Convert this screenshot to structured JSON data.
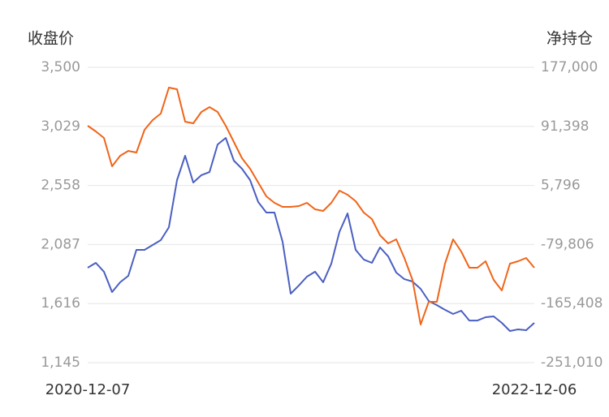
{
  "chart_data": {
    "type": "line",
    "ylabel": "收盘价",
    "y2label": "净持仓",
    "categories": [
      "2020-12-07",
      null,
      null,
      null,
      null,
      null,
      null,
      null,
      null,
      null,
      null,
      null,
      null,
      null,
      null,
      null,
      null,
      null,
      null,
      null,
      null,
      null,
      null,
      null,
      null,
      null,
      null,
      null,
      null,
      null,
      null,
      null,
      null,
      null,
      null,
      null,
      null,
      null,
      null,
      null,
      null,
      null,
      null,
      null,
      null,
      null,
      null,
      null,
      null,
      null,
      null,
      null,
      null,
      null,
      null,
      "2022-12-06"
    ],
    "ylim": [
      1145,
      3500
    ],
    "yticks": [
      {
        "value": 1145,
        "label": "1,145"
      },
      {
        "value": 1616,
        "label": "1,616"
      },
      {
        "value": 2087,
        "label": "2,087"
      },
      {
        "value": 2558,
        "label": "2,558"
      },
      {
        "value": 3029,
        "label": "3,029"
      },
      {
        "value": 3500,
        "label": "3,500"
      }
    ],
    "y2lim": [
      -251010,
      177000
    ],
    "y2ticks": [
      {
        "value": -251010,
        "label": "-251,010"
      },
      {
        "value": -165408,
        "label": "-165,408"
      },
      {
        "value": -79806,
        "label": "-79,806"
      },
      {
        "value": 5796,
        "label": "5,796"
      },
      {
        "value": 91398,
        "label": "91,398"
      },
      {
        "value": 177000,
        "label": "177,000"
      }
    ],
    "grid": true,
    "series": [
      {
        "color": "#4a5fc1",
        "axis": "y",
        "values": [
          1902,
          1941,
          1870,
          1708,
          1786,
          1837,
          2044,
          2044,
          2083,
          2122,
          2225,
          2601,
          2795,
          2581,
          2640,
          2665,
          2885,
          2937,
          2756,
          2691,
          2601,
          2426,
          2342,
          2342,
          2109,
          1695,
          1760,
          1831,
          1870,
          1786,
          1934,
          2187,
          2335,
          2044,
          1967,
          1941,
          2064,
          1993,
          1863,
          1811,
          1792,
          1734,
          1637,
          1604,
          1566,
          1533,
          1559,
          1481,
          1481,
          1507,
          1514,
          1462,
          1397,
          1410,
          1404,
          1462
        ]
      },
      {
        "color": "#f06418",
        "axis": "y2",
        "values": [
          92338,
          84107,
          74700,
          33546,
          48832,
          55887,
          53535,
          86459,
          100569,
          109976,
          147603,
          145251,
          98217,
          95866,
          112328,
          119383,
          112328,
          92338,
          68821,
          45304,
          30018,
          10029,
          -9961,
          -19368,
          -25247,
          -25247,
          -24071,
          -19368,
          -28774,
          -31126,
          -19368,
          -1730,
          -7609,
          -17016,
          -33478,
          -42885,
          -66402,
          -78160,
          -72281,
          -99325,
          -131073,
          -195745,
          -162821,
          -162821,
          -107556,
          -72281,
          -89919,
          -113436,
          -113436,
          -104029,
          -131073,
          -146359,
          -107556,
          -104029,
          -99325,
          -113436
        ]
      }
    ]
  }
}
